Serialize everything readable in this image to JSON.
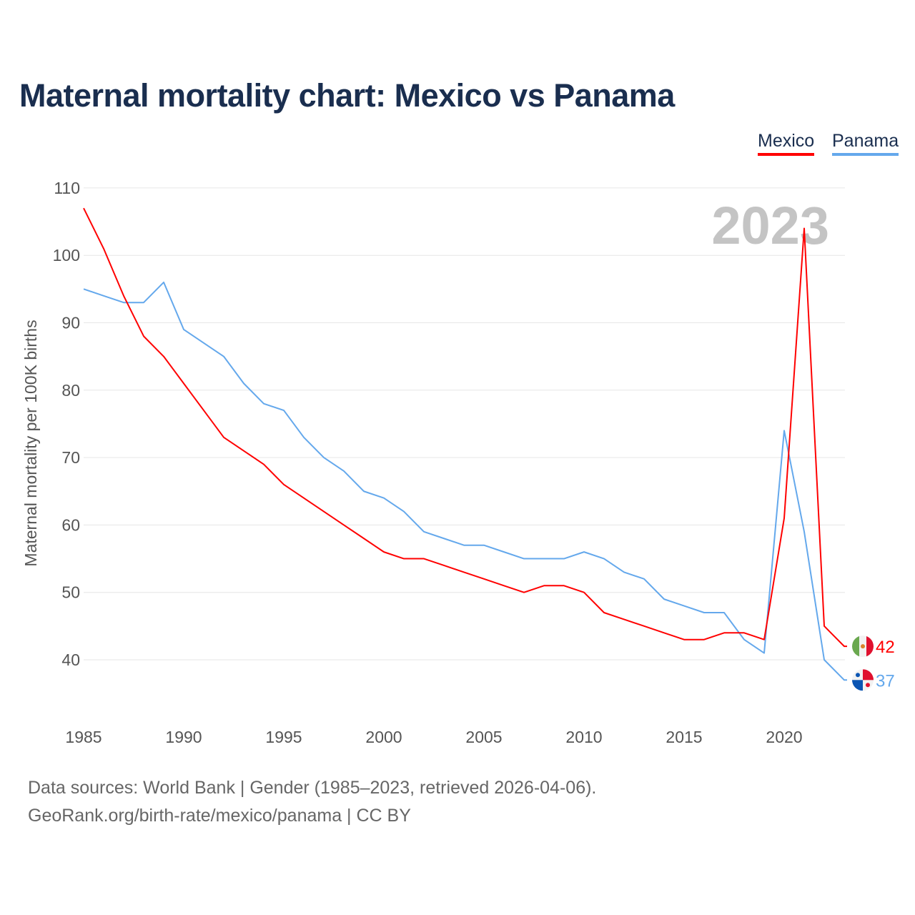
{
  "chart_data": {
    "type": "line",
    "title": "Maternal mortality chart: Mexico vs Panama",
    "xlabel": "",
    "ylabel": "Maternal mortality per 100K births",
    "xlim": [
      1985,
      2023
    ],
    "ylim": [
      33,
      110
    ],
    "yticks": [
      40,
      50,
      60,
      70,
      80,
      90,
      100,
      110
    ],
    "xticks": [
      1985,
      1990,
      1995,
      2000,
      2005,
      2010,
      2015,
      2020
    ],
    "grid": true,
    "legend_position": "top-right",
    "year_watermark": "2023",
    "x": [
      1985,
      1986,
      1987,
      1988,
      1989,
      1990,
      1991,
      1992,
      1993,
      1994,
      1995,
      1996,
      1997,
      1998,
      1999,
      2000,
      2001,
      2002,
      2003,
      2004,
      2005,
      2006,
      2007,
      2008,
      2009,
      2010,
      2011,
      2012,
      2013,
      2014,
      2015,
      2016,
      2017,
      2018,
      2019,
      2020,
      2021,
      2022,
      2023
    ],
    "series": [
      {
        "name": "Mexico",
        "color": "#ff0000",
        "end_label": "42",
        "values": [
          107,
          101,
          94,
          88,
          85,
          81,
          77,
          73,
          71,
          69,
          66,
          64,
          62,
          60,
          58,
          56,
          55,
          55,
          54,
          53,
          52,
          51,
          50,
          51,
          51,
          50,
          47,
          46,
          45,
          44,
          43,
          43,
          44,
          44,
          43,
          61,
          104,
          45,
          42
        ]
      },
      {
        "name": "Panama",
        "color": "#64a8ec",
        "end_label": "37",
        "values": [
          95,
          94,
          93,
          93,
          96,
          89,
          87,
          85,
          81,
          78,
          77,
          73,
          70,
          68,
          65,
          64,
          62,
          59,
          58,
          57,
          57,
          56,
          55,
          55,
          55,
          56,
          55,
          53,
          52,
          49,
          48,
          47,
          47,
          43,
          41,
          74,
          59,
          40,
          37
        ]
      }
    ]
  },
  "footer": {
    "sources": "Data sources: World Bank | Gender (1985–2023, retrieved 2026-04-06).",
    "credit": "GeoRank.org/birth-rate/mexico/panama | CC BY"
  }
}
